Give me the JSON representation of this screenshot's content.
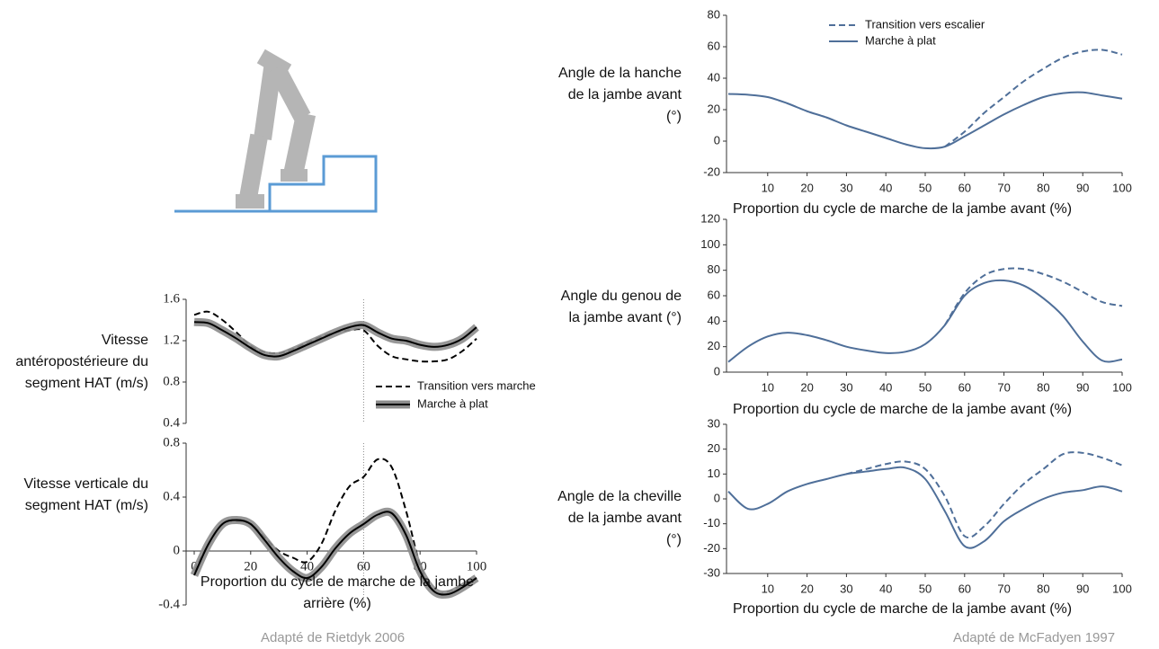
{
  "chart_data": [
    {
      "type": "line",
      "ylabel": "Angle de la hanche de la jambe avant (°)",
      "xlabel": "Proportion du cycle de marche de la jambe avant (%)",
      "xlim": [
        0,
        100
      ],
      "xticks": [
        10,
        20,
        30,
        40,
        50,
        60,
        70,
        80,
        90,
        100
      ],
      "ylim": [
        -20,
        80
      ],
      "yticks": [
        -20,
        0,
        20,
        40,
        60,
        80
      ],
      "legend": true,
      "x": [
        0,
        5,
        10,
        15,
        20,
        25,
        30,
        35,
        40,
        45,
        50,
        55,
        60,
        65,
        70,
        75,
        80,
        85,
        90,
        95,
        100
      ],
      "series": [
        {
          "name": "Transition vers escalier",
          "color": "#4f6f99",
          "dash": true,
          "values": [
            null,
            null,
            null,
            null,
            null,
            null,
            null,
            null,
            null,
            null,
            null,
            -3.5,
            6,
            18,
            28,
            38,
            46,
            53,
            57,
            58,
            55
          ]
        },
        {
          "name": "Marche à plat",
          "color": "#4f6f99",
          "dash": false,
          "values": [
            30,
            29.5,
            28,
            24,
            19,
            15,
            10,
            6,
            2,
            -2,
            -4.5,
            -3.5,
            3,
            10,
            17,
            23,
            28,
            30.5,
            31,
            29,
            27
          ]
        }
      ]
    },
    {
      "type": "line",
      "ylabel": "Angle du genou de la jambe avant (°)",
      "xlabel": "Proportion du cycle de marche de la jambe avant (%)",
      "xlim": [
        0,
        100
      ],
      "xticks": [
        10,
        20,
        30,
        40,
        50,
        60,
        70,
        80,
        90,
        100
      ],
      "ylim": [
        0,
        120
      ],
      "yticks": [
        0,
        20,
        40,
        60,
        80,
        100,
        120
      ],
      "x": [
        0,
        5,
        10,
        15,
        20,
        25,
        30,
        35,
        40,
        45,
        50,
        55,
        60,
        65,
        70,
        75,
        80,
        85,
        90,
        95,
        100
      ],
      "series": [
        {
          "name": "Transition vers escalier",
          "color": "#4f6f99",
          "dash": true,
          "values": [
            null,
            null,
            null,
            null,
            null,
            null,
            null,
            null,
            null,
            null,
            null,
            37,
            62,
            76,
            81,
            81,
            77,
            71,
            63,
            55,
            52
          ]
        },
        {
          "name": "Marche à plat",
          "color": "#4f6f99",
          "dash": false,
          "values": [
            8,
            20,
            28,
            31,
            29,
            25,
            20,
            17,
            15,
            16,
            22,
            37,
            60,
            70,
            72,
            68,
            58,
            44,
            24,
            9,
            10
          ]
        }
      ]
    },
    {
      "type": "line",
      "ylabel": "Angle de la cheville de la jambe avant (°)",
      "xlabel": "Proportion du cycle de marche de la jambe avant (%)",
      "xlim": [
        0,
        100
      ],
      "xticks": [
        10,
        20,
        30,
        40,
        50,
        60,
        70,
        80,
        90,
        100
      ],
      "ylim": [
        -30,
        30
      ],
      "yticks": [
        -30,
        -20,
        -10,
        0,
        10,
        20,
        30
      ],
      "x": [
        0,
        5,
        10,
        15,
        20,
        25,
        30,
        35,
        40,
        45,
        50,
        55,
        60,
        65,
        70,
        75,
        80,
        85,
        90,
        95,
        100
      ],
      "series": [
        {
          "name": "Transition vers escalier",
          "color": "#4f6f99",
          "dash": true,
          "values": [
            null,
            null,
            null,
            null,
            null,
            null,
            10,
            12,
            14,
            15,
            12,
            1,
            -15,
            -11,
            -2,
            6,
            12,
            18,
            18.5,
            16.5,
            13.5
          ]
        },
        {
          "name": "Marche à plat",
          "color": "#4f6f99",
          "dash": false,
          "values": [
            3,
            -4,
            -2,
            3,
            6,
            8,
            10,
            11,
            12,
            12.5,
            8,
            -5,
            -19,
            -17,
            -9,
            -4,
            0,
            2.5,
            3.5,
            5,
            3
          ]
        }
      ]
    },
    {
      "type": "line",
      "ylabel": "Vitesse antéropostérieure du segment HAT (m/s)",
      "xlim": [
        0,
        100
      ],
      "ylim": [
        0.4,
        1.6
      ],
      "yticks": [
        0.4,
        0.8,
        1.2,
        1.6
      ],
      "reference_x": 60,
      "legend": true,
      "x": [
        0,
        5,
        10,
        15,
        20,
        25,
        30,
        35,
        40,
        45,
        50,
        55,
        60,
        65,
        70,
        75,
        80,
        85,
        90,
        95,
        100
      ],
      "series": [
        {
          "name": "Transition vers marche",
          "color": "#000000",
          "dash": true,
          "values": [
            1.45,
            1.48,
            1.4,
            1.28,
            1.15,
            1.09,
            1.08,
            1.12,
            1.18,
            1.24,
            1.28,
            1.3,
            1.3,
            1.15,
            1.05,
            1.02,
            1.0,
            1.0,
            1.02,
            1.1,
            1.22
          ]
        },
        {
          "name": "Marche à plat",
          "color": "#000000",
          "dash": false,
          "band": true,
          "band_color": "#8c8c8c",
          "values": [
            1.38,
            1.37,
            1.3,
            1.22,
            1.13,
            1.06,
            1.05,
            1.1,
            1.16,
            1.22,
            1.28,
            1.33,
            1.35,
            1.28,
            1.22,
            1.2,
            1.16,
            1.14,
            1.16,
            1.22,
            1.33
          ]
        }
      ]
    },
    {
      "type": "line",
      "ylabel": "Vitesse verticale du segment HAT (m/s)",
      "xlabel": "Proportion du cycle de marche de la jambe arrière (%)",
      "xlim": [
        0,
        100
      ],
      "xticks": [
        0,
        20,
        40,
        60,
        80,
        100
      ],
      "ylim": [
        -0.4,
        0.8
      ],
      "yticks": [
        -0.4,
        0,
        0.4,
        0.8
      ],
      "reference_x": 60,
      "x": [
        0,
        5,
        10,
        15,
        20,
        25,
        30,
        35,
        40,
        45,
        50,
        55,
        60,
        65,
        70,
        75,
        80,
        85,
        90,
        95,
        100
      ],
      "series": [
        {
          "name": "Transition vers marche",
          "color": "#000000",
          "dash": true,
          "values": [
            -0.15,
            0.05,
            0.2,
            0.22,
            0.2,
            0.1,
            0.0,
            -0.05,
            -0.08,
            0.05,
            0.3,
            0.48,
            0.55,
            0.68,
            0.62,
            0.3,
            -0.1,
            -0.3,
            -0.3,
            -0.25,
            -0.2
          ]
        },
        {
          "name": "Marche à plat",
          "color": "#000000",
          "dash": false,
          "band": true,
          "band_color": "#8c8c8c",
          "values": [
            -0.18,
            0.05,
            0.2,
            0.23,
            0.2,
            0.08,
            -0.05,
            -0.15,
            -0.2,
            -0.12,
            0.02,
            0.13,
            0.2,
            0.27,
            0.28,
            0.12,
            -0.15,
            -0.3,
            -0.32,
            -0.27,
            -0.2
          ]
        }
      ]
    }
  ],
  "credits": [
    "Adapté de Rietdyk 2006",
    "Adapté de McFadyen 1997"
  ]
}
